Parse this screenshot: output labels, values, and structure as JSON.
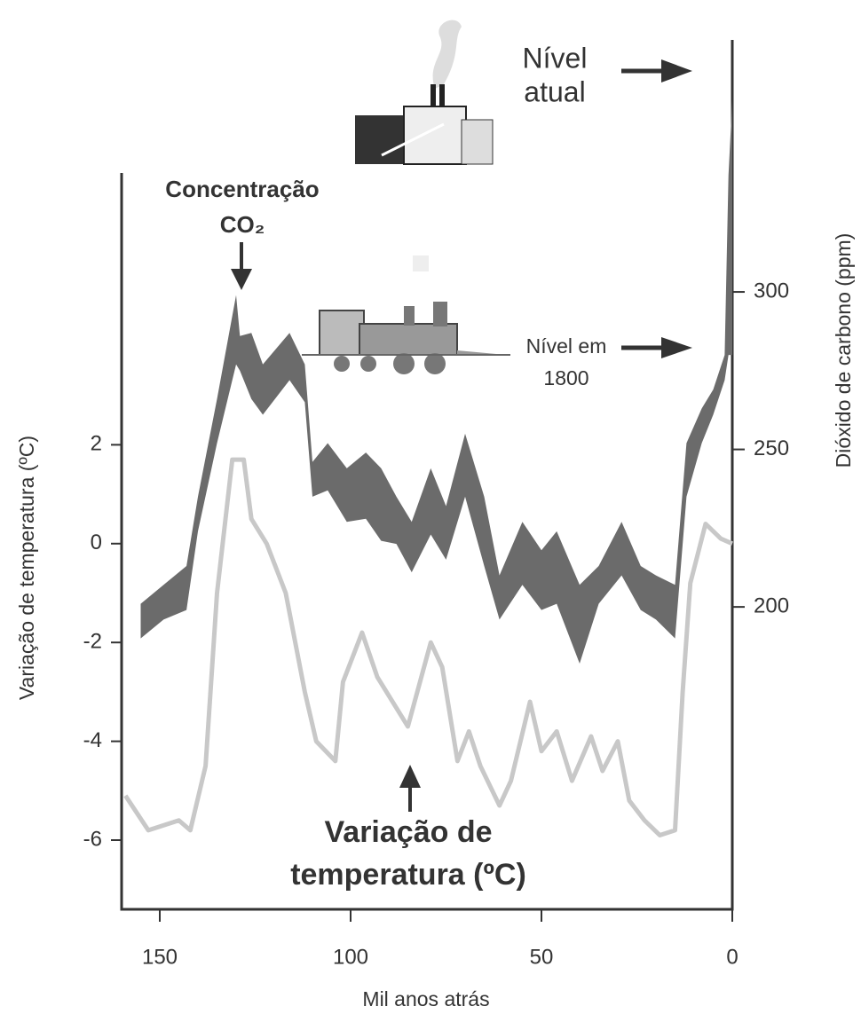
{
  "chart_data": {
    "type": "band_line",
    "xlabel": "Mil anos atrás",
    "ylabel": "Variação de temperatura (ºC)",
    "y2label": "Dióxido de carbono  (ppm)",
    "xlim": [
      160,
      0
    ],
    "xticks": [
      150,
      100,
      50,
      0
    ],
    "ylim": [
      -7.4,
      7.5
    ],
    "yticks": [
      -6,
      -4,
      -2,
      0,
      2
    ],
    "y2lim": [
      104,
      380
    ],
    "y2ticks": [
      200,
      250,
      300
    ],
    "annotations": [
      "Concentração",
      "CO₂",
      "Nível",
      "atual",
      "Nível em",
      "1800",
      "Variação de",
      "temperatura (ºC)"
    ],
    "series": [
      {
        "color": "#6b6b6b",
        "axis": "y2",
        "x": [
          155,
          149,
          143,
          140,
          135,
          130,
          129,
          126,
          123,
          116,
          112,
          110,
          106,
          101,
          96,
          92,
          88,
          84,
          79,
          75,
          70,
          65,
          61,
          55,
          50,
          46,
          40,
          35,
          29,
          24,
          20,
          15,
          12,
          8,
          5,
          2,
          1,
          0
        ],
        "values": [
          201,
          207,
          213,
          235,
          266,
          299,
          286,
          287,
          277,
          287,
          277,
          246,
          252,
          244,
          249,
          244,
          235,
          227,
          244,
          232,
          255,
          235,
          210,
          227,
          218,
          224,
          207,
          213,
          227,
          213,
          210,
          207,
          252,
          263,
          269,
          280,
          337,
          361
        ],
        "lower": [
          190,
          196,
          199,
          224,
          252,
          277,
          275,
          266,
          261,
          272,
          265,
          235,
          237,
          227,
          228,
          221,
          220,
          211,
          223,
          215,
          235,
          213,
          196,
          207,
          199,
          201,
          182,
          201,
          210,
          199,
          196,
          190,
          235,
          252,
          261,
          272,
          280,
          280
        ]
      },
      {
        "color": "#c8c8c8",
        "axis": "y",
        "x": [
          159,
          153,
          145,
          142,
          138,
          135,
          131,
          128,
          126,
          122,
          117,
          112,
          109,
          104,
          102,
          97,
          93,
          89,
          85,
          79,
          76,
          72,
          69,
          66,
          61,
          58,
          53,
          50,
          46,
          42,
          37,
          34,
          30,
          27,
          23,
          19,
          15,
          13,
          11,
          7,
          3,
          0
        ],
        "values": [
          -5.1,
          -5.8,
          -5.6,
          -5.8,
          -4.5,
          -1,
          1.7,
          1.7,
          0.5,
          0,
          -1,
          -3,
          -4,
          -4.4,
          -2.8,
          -1.8,
          -2.7,
          -3.2,
          -3.7,
          -2,
          -2.5,
          -4.4,
          -3.8,
          -4.5,
          -5.3,
          -4.8,
          -3.2,
          -4.2,
          -3.8,
          -4.8,
          -3.9,
          -4.6,
          -4,
          -5.2,
          -5.6,
          -5.9,
          -5.8,
          -3,
          -0.8,
          0.4,
          0.1,
          0
        ]
      }
    ]
  }
}
